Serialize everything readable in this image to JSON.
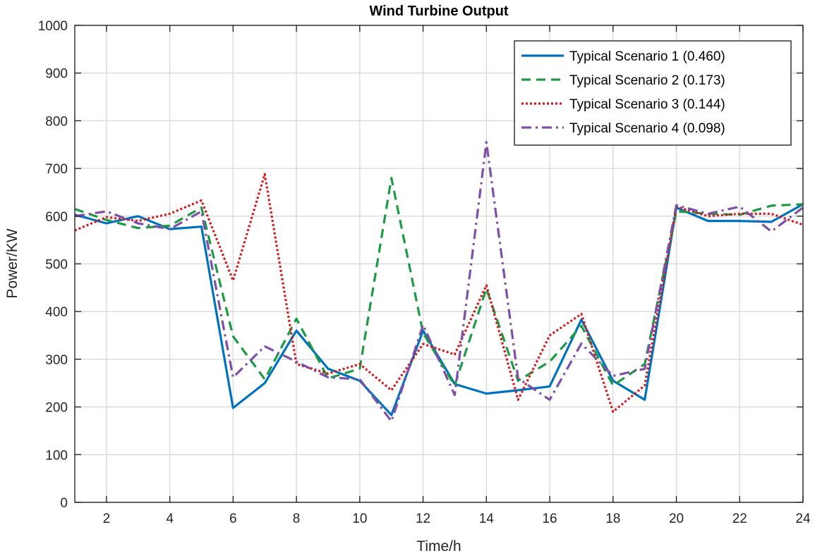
{
  "chart_data": {
    "type": "line",
    "title": "Wind Turbine Output",
    "xlabel": "Time/h",
    "ylabel": "Power/KW",
    "xlim": [
      1,
      24
    ],
    "ylim": [
      0,
      1000
    ],
    "xticks": [
      2,
      4,
      6,
      8,
      10,
      12,
      14,
      16,
      18,
      20,
      22,
      24
    ],
    "yticks": [
      0,
      100,
      200,
      300,
      400,
      500,
      600,
      700,
      800,
      900,
      1000
    ],
    "xtick_labels": [
      "2",
      "4",
      "6",
      "8",
      "10",
      "12",
      "14",
      "16",
      "18",
      "20",
      "22",
      "24"
    ],
    "ytick_labels": [
      "0",
      "100",
      "200",
      "300",
      "400",
      "500",
      "600",
      "700",
      "800",
      "900",
      "1000"
    ],
    "grid": true,
    "legend_position": "top-right",
    "x": [
      1,
      2,
      3,
      4,
      5,
      6,
      7,
      8,
      9,
      10,
      11,
      12,
      13,
      14,
      15,
      16,
      17,
      18,
      19,
      20,
      21,
      22,
      23,
      24
    ],
    "series": [
      {
        "name": "Typical Scenario 1 (0.460)",
        "color": "#0072bd",
        "dash": "solid",
        "values": [
          603,
          585,
          600,
          573,
          578,
          198,
          250,
          360,
          280,
          255,
          183,
          360,
          248,
          228,
          235,
          243,
          383,
          255,
          215,
          618,
          590,
          590,
          588,
          625
        ]
      },
      {
        "name": "Typical Scenario 2 (0.173)",
        "color": "#1e9a44",
        "dash": "dashed",
        "values": [
          615,
          592,
          575,
          580,
          618,
          348,
          258,
          385,
          260,
          280,
          680,
          355,
          245,
          448,
          255,
          295,
          370,
          245,
          290,
          610,
          605,
          603,
          622,
          625
        ]
      },
      {
        "name": "Typical Scenario 3 (0.144)",
        "color": "#d01c1f",
        "dash": "dotted",
        "values": [
          570,
          598,
          590,
          605,
          633,
          465,
          688,
          290,
          270,
          290,
          235,
          332,
          310,
          455,
          215,
          350,
          395,
          190,
          245,
          620,
          600,
          605,
          605,
          582
        ]
      },
      {
        "name": "Typical Scenario 4 (0.098)",
        "color": "#7e4fa8",
        "dash": "dashdot",
        "values": [
          600,
          610,
          585,
          573,
          610,
          262,
          327,
          295,
          262,
          258,
          170,
          372,
          225,
          755,
          260,
          215,
          333,
          265,
          280,
          623,
          605,
          620,
          568,
          618
        ]
      }
    ]
  }
}
